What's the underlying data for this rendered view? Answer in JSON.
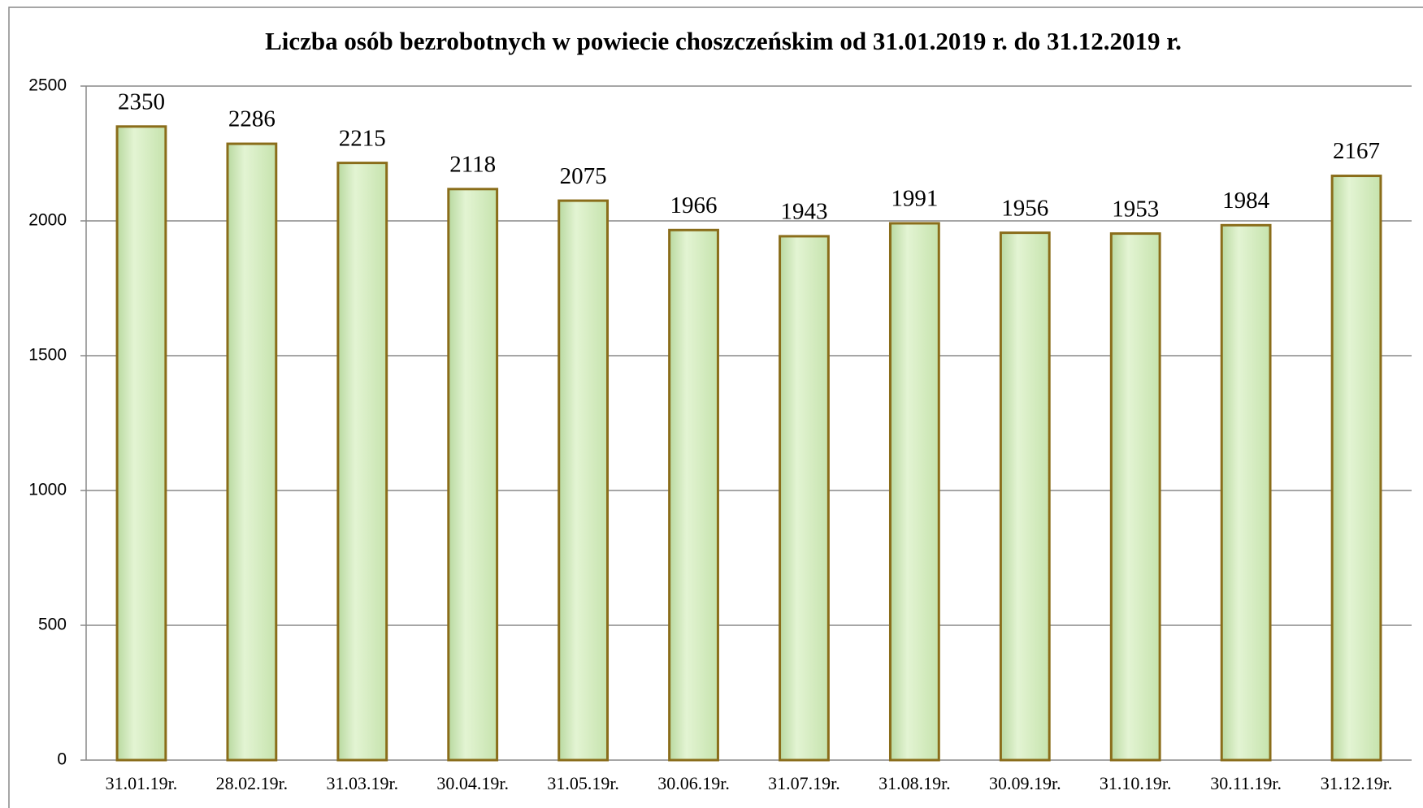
{
  "chart_data": {
    "type": "bar",
    "title": "Liczba osób bezrobotnych w powiecie choszczeńskim od 31.01.2019 r. do 31.12.2019 r.",
    "categories": [
      "31.01.19r.",
      "28.02.19r.",
      "31.03.19r.",
      "30.04.19r.",
      "31.05.19r.",
      "30.06.19r.",
      "31.07.19r.",
      "31.08.19r.",
      "30.09.19r.",
      "31.10.19r.",
      "30.11.19r.",
      "31.12.19r."
    ],
    "values": [
      2350,
      2286,
      2215,
      2118,
      2075,
      1966,
      1943,
      1991,
      1956,
      1953,
      1984,
      2167
    ],
    "color": "#d4ecc0",
    "ylim": [
      0,
      2500
    ],
    "yticks": [
      0,
      500,
      1000,
      1500,
      2000,
      2500
    ],
    "grid": true
  }
}
